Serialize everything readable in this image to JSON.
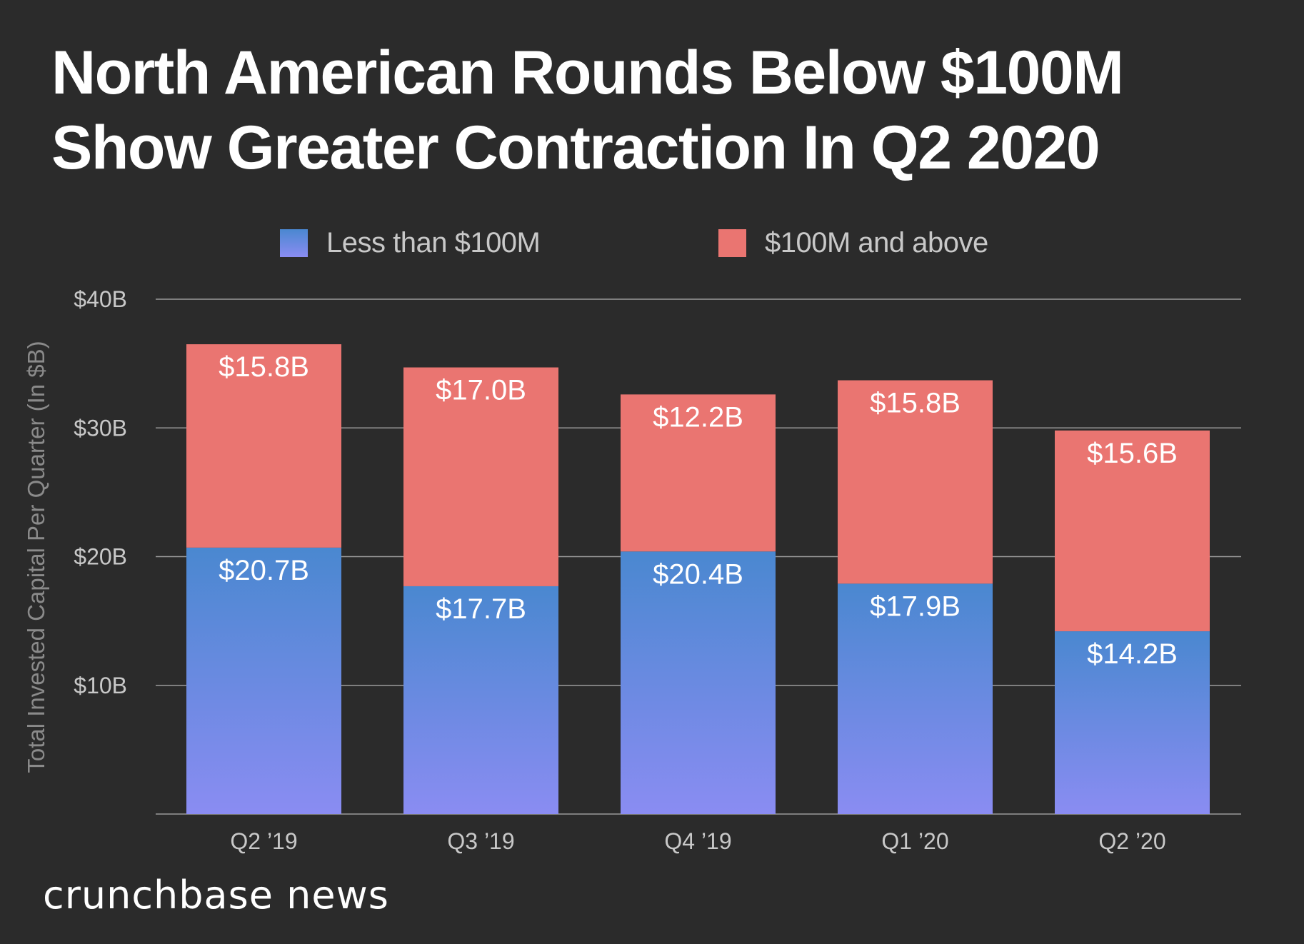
{
  "title_lines": [
    "North American Rounds Below $100M",
    "Show Greater Contraction In Q2 2020"
  ],
  "brand": "crunchbase news",
  "colors": {
    "background": "#2b2b2b",
    "below_100m_top": "#4a88d0",
    "below_100m_bottom": "#8a8cf2",
    "above_100m": "#ea7571",
    "grid": "#9a9a9a"
  },
  "chart_data": {
    "type": "bar",
    "stacked": true,
    "title": "North American Rounds Below $100M Show Greater Contraction In Q2 2020",
    "xlabel": "",
    "ylabel": "Total Invested Capital Per Quarter (In $B)",
    "ylim": [
      0,
      40
    ],
    "yticks": [
      10,
      20,
      30,
      40
    ],
    "ytick_labels": [
      "$10B",
      "$20B",
      "$30B",
      "$40B"
    ],
    "grid": true,
    "legend_position": "top-center",
    "categories": [
      "Q2 ’19",
      "Q3 ’19",
      "Q4 ’19",
      "Q1 ’20",
      "Q2 ’20"
    ],
    "series": [
      {
        "name": "Less than $100M",
        "values": [
          20.7,
          17.7,
          20.4,
          17.9,
          14.2
        ],
        "labels": [
          "$20.7B",
          "$17.7B",
          "$20.4B",
          "$17.9B",
          "$14.2B"
        ]
      },
      {
        "name": "$100M and above",
        "values": [
          15.8,
          17.0,
          12.2,
          15.8,
          15.6
        ],
        "labels": [
          "$15.8B",
          "$17.0B",
          "$12.2B",
          "$15.8B",
          "$15.6B"
        ]
      }
    ]
  }
}
